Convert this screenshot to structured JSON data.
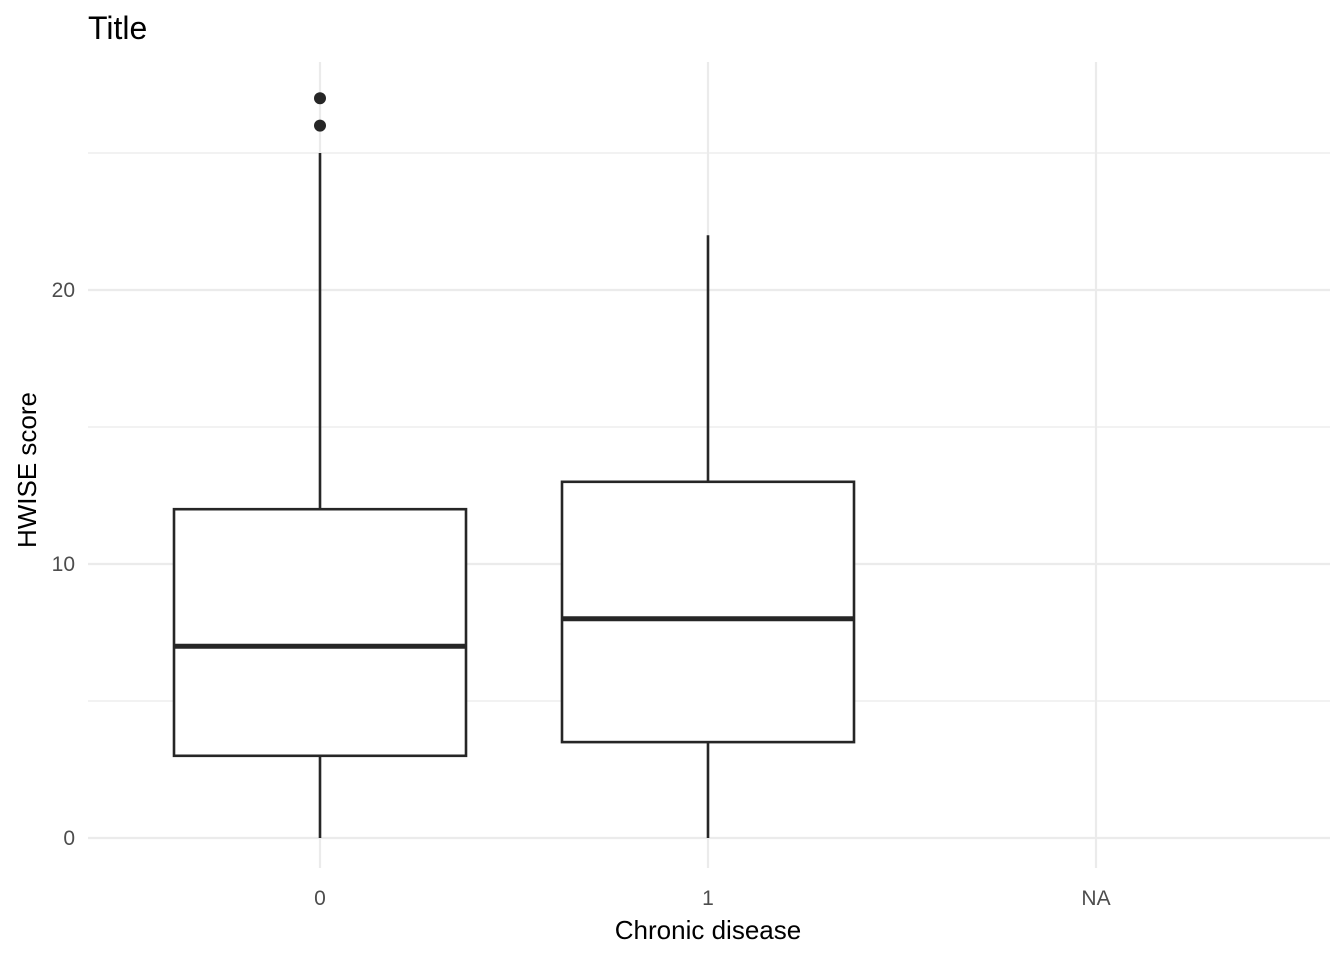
{
  "chart_data": {
    "type": "boxplot",
    "title": "Title",
    "xlabel": "Chronic disease",
    "ylabel": "HWISE score",
    "categories": [
      "0",
      "1",
      "NA"
    ],
    "y_ticks": [
      0,
      10,
      20
    ],
    "y_minor_ticks": [
      5,
      15,
      25
    ],
    "ylim": [
      -1,
      28
    ],
    "grid": true,
    "boxes": [
      {
        "category": "0",
        "whisker_low": 0,
        "q1": 3,
        "median": 7,
        "q3": 12,
        "whisker_high": 25,
        "outliers": [
          26,
          27
        ]
      },
      {
        "category": "1",
        "whisker_low": 0,
        "q1": 3.5,
        "median": 8,
        "q3": 13,
        "whisker_high": 22,
        "outliers": []
      }
    ],
    "colors": {
      "box_fill": "#ffffff",
      "box_stroke": "#262626",
      "grid": "#ebebeb",
      "tick_text": "#4d4d4d"
    }
  }
}
